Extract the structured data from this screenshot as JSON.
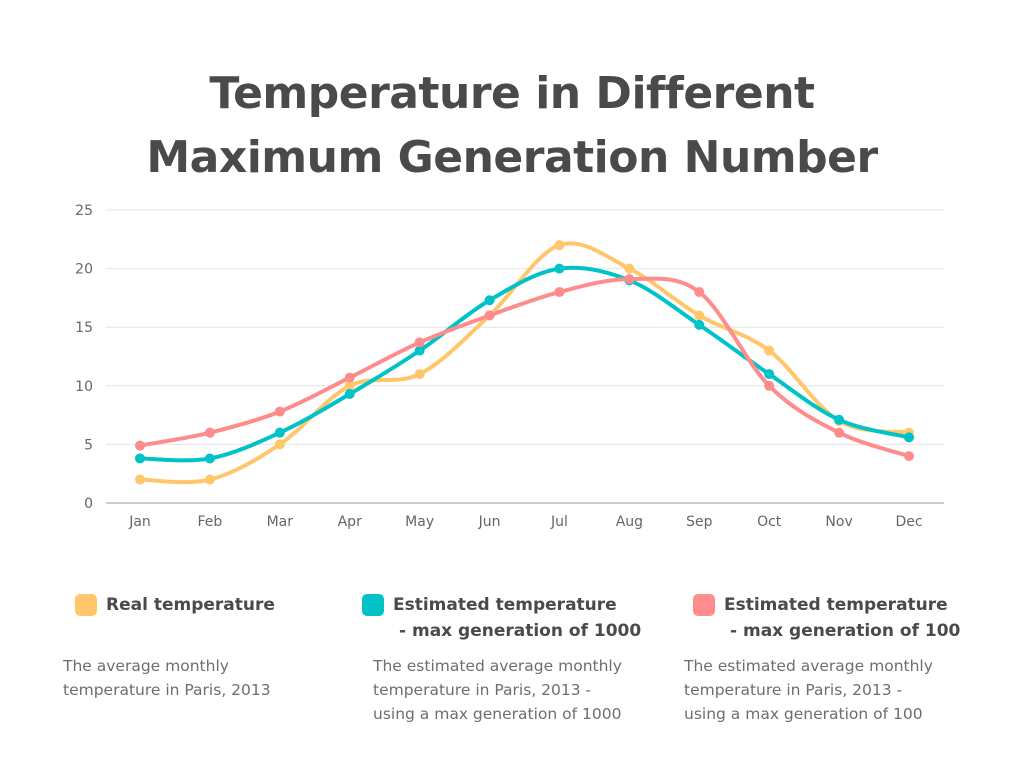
{
  "chart_data": {
    "type": "line",
    "title": "Temperature in Different Maximum Generation Number",
    "title_lines": [
      "Temperature in Different",
      "Maximum Generation Number"
    ],
    "categories": [
      "Jan",
      "Feb",
      "Mar",
      "Apr",
      "May",
      "Jun",
      "Jul",
      "Aug",
      "Sep",
      "Oct",
      "Nov",
      "Dec"
    ],
    "ylim": [
      0,
      25
    ],
    "yticks": [
      0,
      5,
      10,
      15,
      20,
      25
    ],
    "grid": true,
    "legend_position": "bottom",
    "series": [
      {
        "name": "Real temperature",
        "color": "#ffc66b",
        "values": [
          2,
          2,
          5,
          10,
          11,
          16,
          22,
          20,
          16,
          13,
          7,
          6
        ],
        "description": [
          "The average monthly",
          "temperature in Paris, 2013"
        ]
      },
      {
        "name": "Estimated temperature - max generation of 1000",
        "name_lines": [
          "Estimated temperature",
          "- max generation of 1000"
        ],
        "color": "#00c2c7",
        "values": [
          3.8,
          3.8,
          6,
          9.3,
          13,
          17.3,
          20,
          19,
          15.2,
          11,
          7.1,
          5.6
        ],
        "description": [
          "The estimated average monthly",
          "temperature in Paris, 2013 -",
          "using a max generation of 1000"
        ]
      },
      {
        "name": "Estimated temperature - max generation of 100",
        "name_lines": [
          "Estimated temperature",
          "- max generation of 100"
        ],
        "color": "#ff8c8c",
        "values": [
          4.9,
          6,
          7.8,
          10.7,
          13.7,
          16,
          18,
          19.1,
          18,
          10,
          6,
          4
        ],
        "description": [
          "The estimated average monthly",
          "temperature in Paris, 2013 -",
          "using a max generation of 100"
        ]
      }
    ]
  }
}
